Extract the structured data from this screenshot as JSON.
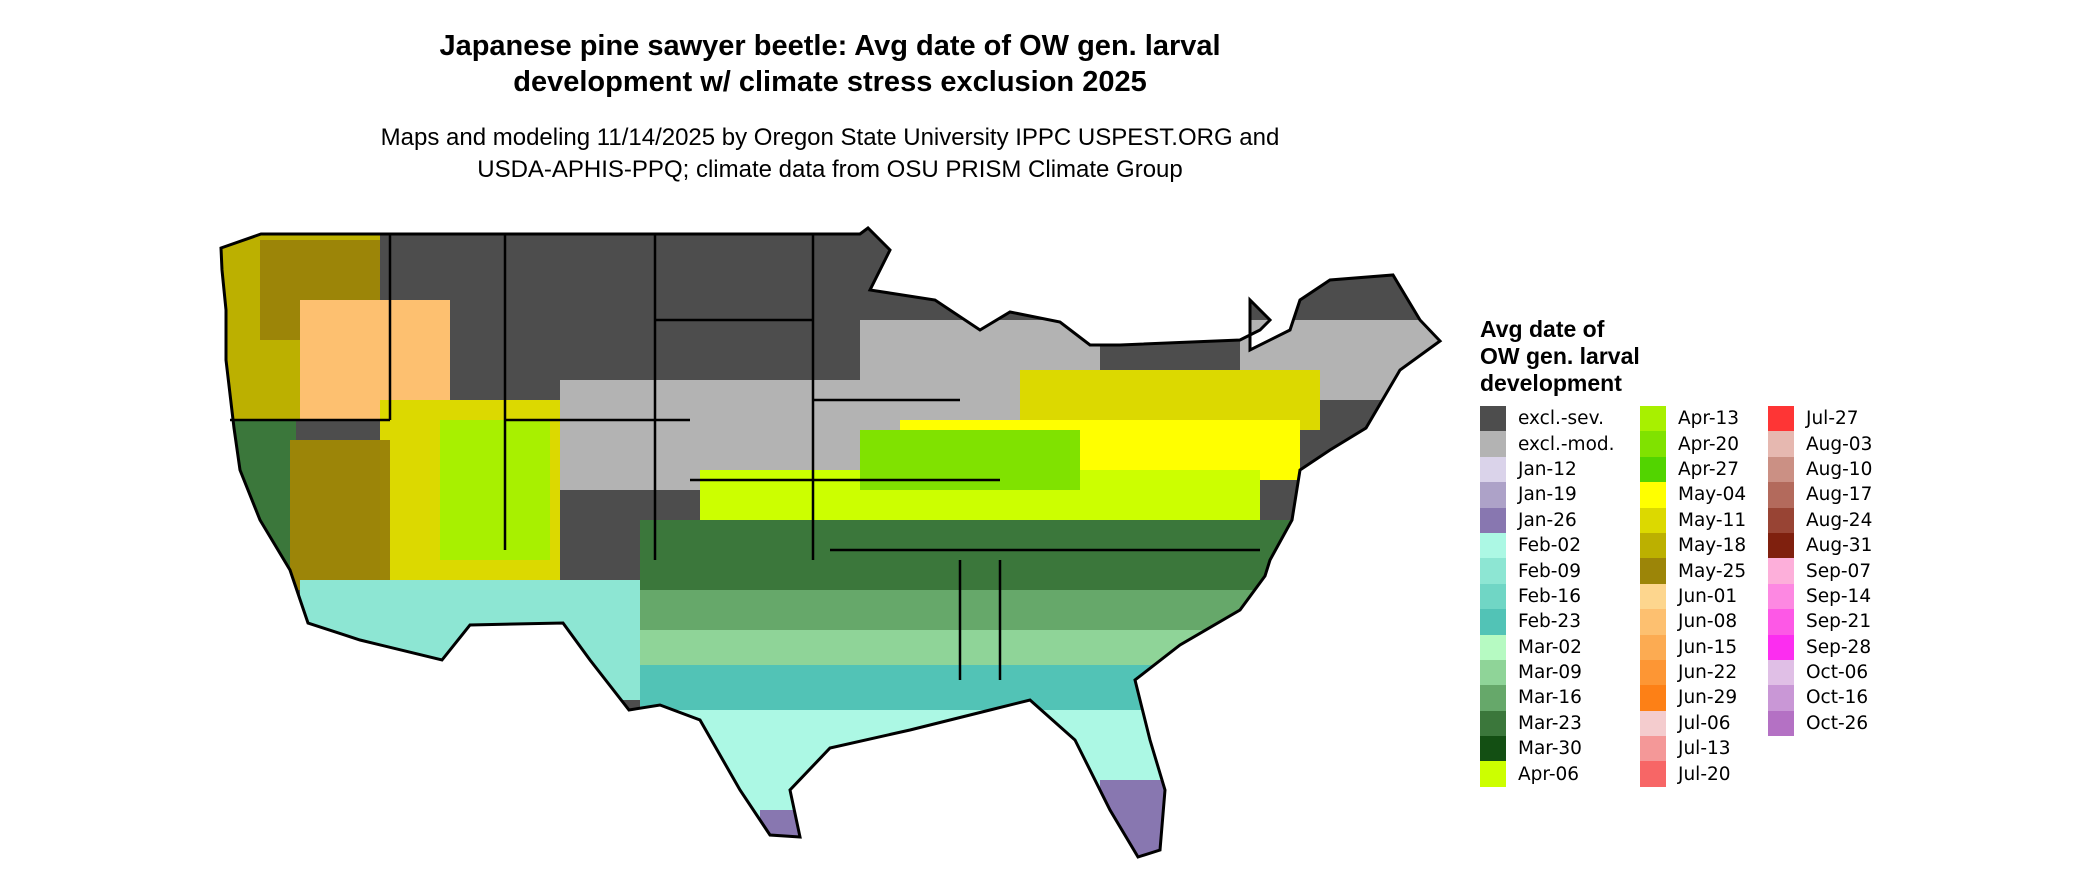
{
  "chart_data": {
    "type": "heatmap",
    "title": "Japanese pine sawyer beetle: Avg date of OW gen. larval development w/ climate stress exclusion 2025",
    "title_lines": [
      "Japanese pine sawyer beetle: Avg date of OW gen. larval",
      "development w/ climate stress exclusion 2025"
    ],
    "subtitle_lines": [
      "Maps and modeling 11/14/2025 by Oregon State University IPPC USPEST.ORG and",
      "USDA-APHIS-PPQ; climate data from OSU PRISM Climate Group"
    ],
    "legend_title_lines": [
      "Avg date of",
      "OW gen. larval",
      "development"
    ],
    "legend_placement": "right",
    "legend": [
      {
        "label": "excl.-sev.",
        "color": "#4d4d4d"
      },
      {
        "label": "excl.-mod.",
        "color": "#b3b3b3"
      },
      {
        "label": "Jan-12",
        "color": "#dad3ea"
      },
      {
        "label": "Jan-19",
        "color": "#ada2c8"
      },
      {
        "label": "Jan-26",
        "color": "#8877b0"
      },
      {
        "label": "Feb-02",
        "color": "#acf8e4"
      },
      {
        "label": "Feb-09",
        "color": "#8de6d3"
      },
      {
        "label": "Feb-16",
        "color": "#70d6c5"
      },
      {
        "label": "Feb-23",
        "color": "#52c3b6"
      },
      {
        "label": "Mar-02",
        "color": "#b6fac2"
      },
      {
        "label": "Mar-09",
        "color": "#8fd498"
      },
      {
        "label": "Mar-16",
        "color": "#66a86a"
      },
      {
        "label": "Mar-23",
        "color": "#3b773b"
      },
      {
        "label": "Mar-30",
        "color": "#134f13"
      },
      {
        "label": "Apr-06",
        "color": "#ccff00"
      },
      {
        "label": "Apr-13",
        "color": "#a8f000"
      },
      {
        "label": "Apr-20",
        "color": "#80e200"
      },
      {
        "label": "Apr-27",
        "color": "#52d400"
      },
      {
        "label": "May-04",
        "color": "#ffff00"
      },
      {
        "label": "May-11",
        "color": "#dcd900"
      },
      {
        "label": "May-18",
        "color": "#bcb000"
      },
      {
        "label": "May-25",
        "color": "#9c8508"
      },
      {
        "label": "Jun-01",
        "color": "#fdd68e"
      },
      {
        "label": "Jun-08",
        "color": "#fdc070"
      },
      {
        "label": "Jun-15",
        "color": "#fcab52"
      },
      {
        "label": "Jun-22",
        "color": "#fd9634"
      },
      {
        "label": "Jun-29",
        "color": "#fd8016"
      },
      {
        "label": "Jul-06",
        "color": "#f4ccce"
      },
      {
        "label": "Jul-13",
        "color": "#f49898"
      },
      {
        "label": "Jul-20",
        "color": "#f76666"
      },
      {
        "label": "Jul-27",
        "color": "#fe3535"
      },
      {
        "label": "Aug-03",
        "color": "#e6b8b0"
      },
      {
        "label": "Aug-10",
        "color": "#cb9084"
      },
      {
        "label": "Aug-17",
        "color": "#b36a5c"
      },
      {
        "label": "Aug-24",
        "color": "#984434"
      },
      {
        "label": "Aug-31",
        "color": "#7f200e"
      },
      {
        "label": "Sep-07",
        "color": "#fdafda"
      },
      {
        "label": "Sep-14",
        "color": "#fd88e2"
      },
      {
        "label": "Sep-21",
        "color": "#fd58e6"
      },
      {
        "label": "Sep-28",
        "color": "#fc2df0"
      },
      {
        "label": "Oct-06",
        "color": "#e0bfe6"
      },
      {
        "label": "Oct-16",
        "color": "#c997d6"
      },
      {
        "label": "Oct-26",
        "color": "#b471c4"
      }
    ]
  }
}
